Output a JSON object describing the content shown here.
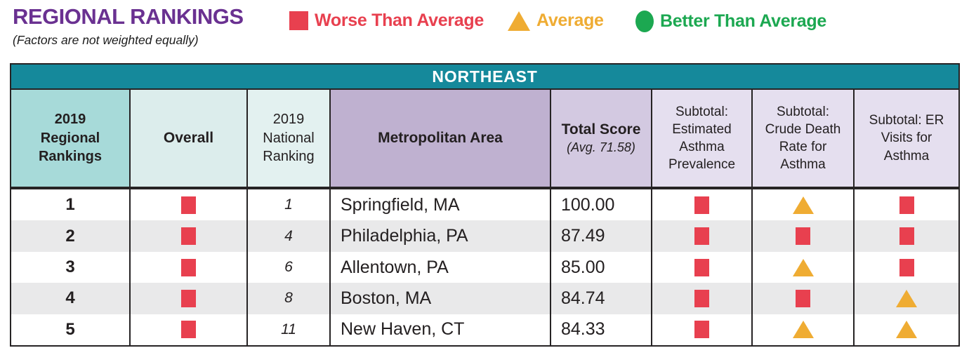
{
  "header": {
    "title": "REGIONAL RANKINGS",
    "subtitle": "(Factors are not weighted equally)"
  },
  "legend": {
    "worse": {
      "icon": "red-square",
      "label": "Worse Than Average"
    },
    "average": {
      "icon": "orange-triangle",
      "label": "Average"
    },
    "better": {
      "icon": "green-circle",
      "label": "Better Than Average"
    }
  },
  "colors": {
    "worse_red": "#E8404F",
    "average_orange": "#EFAC33",
    "better_green": "#1CA851",
    "region_teal": "#15899B",
    "title_purple": "#6A3191"
  },
  "table": {
    "region": "NORTHEAST",
    "columns": {
      "regional": "2019 Regional Rankings",
      "overall": "Overall",
      "national": "2019 National Ranking",
      "metro": "Metropolitan Area",
      "score_title": "Total Score",
      "score_avg": "(Avg. 71.58)",
      "prevalence": "Subtotal: Estimated Asthma Prevalence",
      "death_rate": "Subtotal: Crude Death Rate for Asthma",
      "er_visits": "Subtotal: ER Visits for Asthma"
    },
    "rows": [
      {
        "regional_rank": "1",
        "overall": "worse",
        "national_rank": "1",
        "metro": "Springfield, MA",
        "score": "100.00",
        "prevalence": "worse",
        "death_rate": "average",
        "er_visits": "worse"
      },
      {
        "regional_rank": "2",
        "overall": "worse",
        "national_rank": "4",
        "metro": "Philadelphia, PA",
        "score": "87.49",
        "prevalence": "worse",
        "death_rate": "worse",
        "er_visits": "worse"
      },
      {
        "regional_rank": "3",
        "overall": "worse",
        "national_rank": "6",
        "metro": "Allentown, PA",
        "score": "85.00",
        "prevalence": "worse",
        "death_rate": "average",
        "er_visits": "worse"
      },
      {
        "regional_rank": "4",
        "overall": "worse",
        "national_rank": "8",
        "metro": "Boston, MA",
        "score": "84.74",
        "prevalence": "worse",
        "death_rate": "worse",
        "er_visits": "average"
      },
      {
        "regional_rank": "5",
        "overall": "worse",
        "national_rank": "11",
        "metro": "New Haven, CT",
        "score": "84.33",
        "prevalence": "worse",
        "death_rate": "average",
        "er_visits": "average"
      }
    ]
  }
}
